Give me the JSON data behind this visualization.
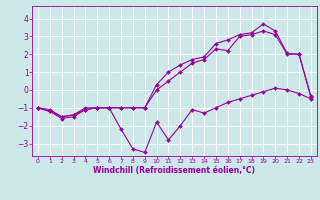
{
  "xlabel": "Windchill (Refroidissement éolien,°C)",
  "bg_color": "#cce8e8",
  "grid_color": "#ffffff",
  "line_color": "#990099",
  "xlim": [
    -0.5,
    23.5
  ],
  "ylim": [
    -3.7,
    4.7
  ],
  "xticks": [
    0,
    1,
    2,
    3,
    4,
    5,
    6,
    7,
    8,
    9,
    10,
    11,
    12,
    13,
    14,
    15,
    16,
    17,
    18,
    19,
    20,
    21,
    22,
    23
  ],
  "yticks": [
    -3,
    -2,
    -1,
    0,
    1,
    2,
    3,
    4
  ],
  "series": [
    {
      "x": [
        0,
        1,
        2,
        3,
        4,
        5,
        6,
        7,
        8,
        9,
        10,
        11,
        12,
        13,
        14,
        15,
        16,
        17,
        18,
        19,
        20,
        21,
        22,
        23
      ],
      "y": [
        -1.0,
        -1.2,
        -1.6,
        -1.5,
        -1.1,
        -1.0,
        -1.0,
        -2.2,
        -3.3,
        -3.5,
        -1.8,
        -2.8,
        -2.0,
        -1.1,
        -1.3,
        -1.0,
        -0.7,
        -0.5,
        -0.3,
        -0.1,
        0.1,
        0.0,
        -0.2,
        -0.5
      ]
    },
    {
      "x": [
        0,
        1,
        2,
        3,
        4,
        5,
        6,
        7,
        8,
        9,
        10,
        11,
        12,
        13,
        14,
        15,
        16,
        17,
        18,
        19,
        20,
        21,
        22,
        23
      ],
      "y": [
        -1.0,
        -1.2,
        -1.5,
        -1.4,
        -1.1,
        -1.0,
        -1.0,
        -1.0,
        -1.0,
        -1.0,
        0.0,
        0.5,
        1.0,
        1.5,
        1.7,
        2.3,
        2.2,
        3.0,
        3.1,
        3.3,
        3.1,
        2.0,
        2.0,
        -0.4
      ]
    },
    {
      "x": [
        0,
        1,
        2,
        3,
        4,
        5,
        6,
        7,
        8,
        9,
        10,
        11,
        12,
        13,
        14,
        15,
        16,
        17,
        18,
        19,
        20,
        21,
        22,
        23
      ],
      "y": [
        -1.0,
        -1.1,
        -1.5,
        -1.4,
        -1.0,
        -1.0,
        -1.0,
        -1.0,
        -1.0,
        -1.0,
        0.3,
        1.0,
        1.4,
        1.7,
        1.85,
        2.6,
        2.8,
        3.1,
        3.2,
        3.7,
        3.3,
        2.05,
        2.0,
        -0.35
      ]
    }
  ]
}
